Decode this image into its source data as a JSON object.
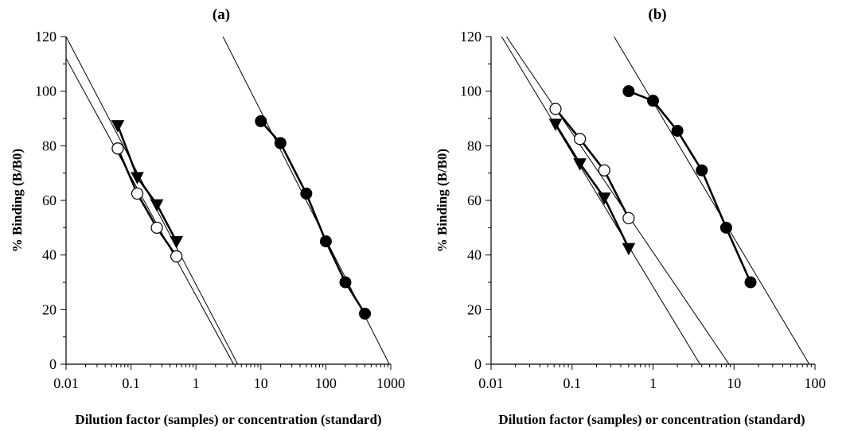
{
  "chart_data": [
    {
      "type": "scatter",
      "title": "(a)",
      "xlabel": "Dilution factor (samples) or concentration (standard)",
      "ylabel": "% Binding (B/B0)",
      "xscale": "log",
      "xlim": [
        0.01,
        1000
      ],
      "ylim": [
        0,
        120
      ],
      "xticks": [
        0.01,
        0.1,
        1,
        10,
        100,
        1000
      ],
      "xtick_labels": [
        "0.01",
        "0.1",
        "1",
        "10",
        "100",
        "1000"
      ],
      "yticks": [
        0,
        20,
        40,
        60,
        80,
        100,
        120
      ],
      "ytick_labels": [
        "0",
        "20",
        "40",
        "60",
        "80",
        "100",
        "120"
      ],
      "grid": false,
      "series": [
        {
          "marker": "triangle-down-filled",
          "x": [
            0.0625,
            0.125,
            0.25,
            0.5
          ],
          "y": [
            87.5,
            68.5,
            58.5,
            45
          ]
        },
        {
          "marker": "circle-open",
          "x": [
            0.0625,
            0.125,
            0.25,
            0.5
          ],
          "y": [
            79,
            62.5,
            50,
            39.5
          ]
        },
        {
          "marker": "circle-filled",
          "x": [
            10,
            20,
            50,
            100,
            200,
            400
          ],
          "y": [
            89,
            81,
            62.5,
            45,
            30,
            18.5
          ]
        }
      ],
      "fit_lines": [
        {
          "from": [
            0.01,
            120
          ],
          "to": [
            4.4,
            0
          ]
        },
        {
          "from": [
            0.01,
            112
          ],
          "to": [
            3.8,
            0
          ]
        },
        {
          "from": [
            2.6,
            120
          ],
          "to": [
            950,
            0
          ]
        }
      ]
    },
    {
      "type": "scatter",
      "title": "(b)",
      "xlabel": "Dilution factor (samples) or concentration (standard)",
      "ylabel": "% Binding (B/B0)",
      "xscale": "log",
      "xlim": [
        0.01,
        100
      ],
      "ylim": [
        0,
        120
      ],
      "xticks": [
        0.01,
        0.1,
        1,
        10,
        100
      ],
      "xtick_labels": [
        "0.01",
        "0.1",
        "1",
        "10",
        "100"
      ],
      "yticks": [
        0,
        20,
        40,
        60,
        80,
        100,
        120
      ],
      "ytick_labels": [
        "0",
        "20",
        "40",
        "60",
        "80",
        "100",
        "120"
      ],
      "grid": false,
      "series": [
        {
          "marker": "triangle-down-filled",
          "x": [
            0.0625,
            0.125,
            0.25,
            0.5
          ],
          "y": [
            88,
            73.5,
            61,
            42.5
          ]
        },
        {
          "marker": "circle-open",
          "x": [
            0.0625,
            0.125,
            0.25,
            0.5
          ],
          "y": [
            93.5,
            82.5,
            71,
            53.5
          ]
        },
        {
          "marker": "circle-filled",
          "x": [
            0.5,
            1,
            2,
            4,
            8,
            16
          ],
          "y": [
            100,
            96.5,
            85.5,
            71,
            50,
            30
          ]
        }
      ],
      "fit_lines": [
        {
          "from": [
            0.0135,
            120
          ],
          "to": [
            3.8,
            0
          ]
        },
        {
          "from": [
            0.0155,
            120
          ],
          "to": [
            8.7,
            0
          ]
        },
        {
          "from": [
            0.33,
            120
          ],
          "to": [
            85,
            0
          ]
        }
      ]
    }
  ]
}
